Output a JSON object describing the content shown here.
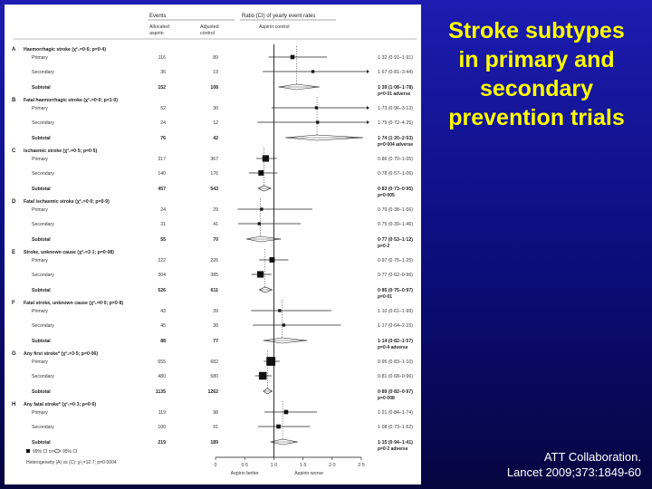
{
  "slide": {
    "title_lines": [
      "Stroke subtypes",
      "in primary and",
      "secondary",
      "prevention trials"
    ],
    "citation_lines": [
      "ATT Collaboration.",
      "Lancet 2009;373:1849-60"
    ],
    "colors": {
      "title": "#ffff00",
      "background": "#1010a0",
      "panel": "#ffffff"
    }
  },
  "chart_data": {
    "type": "forest",
    "header": {
      "events": "Events",
      "col1": [
        "Allocated",
        "aspirin"
      ],
      "col2": [
        "Adjusted",
        "control"
      ],
      "ratio": "Ratio (CI) of yearly event rates",
      "ratio_sub": "Aspirin:control"
    },
    "xlim": [
      0,
      2.5
    ],
    "xticks": [
      "0",
      "0·5",
      "1·0",
      "1·5",
      "2·0",
      "2·5"
    ],
    "xtick_values": [
      0,
      0.5,
      1.0,
      1.5,
      2.0,
      2.5
    ],
    "xlabel_left": "Aspirin better",
    "xlabel_right": "Aspirin worse",
    "reference_line": 1.0,
    "groups": [
      {
        "letter": "A",
        "label": "Haemorrhagic stroke (χ²₁=0·6; p=0·4)",
        "overall": 1.39,
        "rows": [
          {
            "label": "Primary",
            "aspirin": "116",
            "control": "89",
            "ci": "1·32 (0·91–1·91)",
            "est": 1.32,
            "lo": 0.91,
            "hi": 1.91,
            "size": 2
          },
          {
            "label": "Secondary",
            "aspirin": "36",
            "control": "19",
            "ci": "1·67 (0·81–3·44)",
            "est": 1.67,
            "lo": 0.81,
            "hi": 3.44,
            "size": 1
          }
        ],
        "subtotal": {
          "label": "Subtotal",
          "aspirin": "152",
          "control": "108",
          "ci": "1·39 (1·08–1·78)",
          "p": "p=0·01 adverse",
          "est": 1.39,
          "lo": 1.08,
          "hi": 1.78
        }
      },
      {
        "letter": "B",
        "label": "Fatal haemorrhagic stroke (χ²₁=0·0; p=1·0)",
        "overall": 1.74,
        "rows": [
          {
            "label": "Primary",
            "aspirin": "52",
            "control": "30",
            "ci": "1·73 (0·96–3·13)",
            "est": 1.73,
            "lo": 0.96,
            "hi": 3.13,
            "size": 1
          },
          {
            "label": "Secondary",
            "aspirin": "24",
            "control": "12",
            "ci": "1·75 (0·72–4·25)",
            "est": 1.75,
            "lo": 0.72,
            "hi": 4.25,
            "size": 1
          }
        ],
        "subtotal": {
          "label": "Subtotal",
          "aspirin": "76",
          "control": "42",
          "ci": "1·74 (1·20–2·53)",
          "p": "p=0·004 adverse",
          "est": 1.74,
          "lo": 1.2,
          "hi": 2.53
        }
      },
      {
        "letter": "C",
        "label": "Ischaemic stroke (χ²₁=0·5; p=0·5)",
        "overall": 0.83,
        "rows": [
          {
            "label": "Primary",
            "aspirin": "317",
            "control": "367",
            "ci": "0·86 (0·70–1·05)",
            "est": 0.86,
            "lo": 0.7,
            "hi": 1.05,
            "size": 4
          },
          {
            "label": "Secondary",
            "aspirin": "140",
            "control": "176",
            "ci": "0·78 (0·57–1·06)",
            "est": 0.78,
            "lo": 0.57,
            "hi": 1.06,
            "size": 3
          }
        ],
        "subtotal": {
          "label": "Subtotal",
          "aspirin": "457",
          "control": "543",
          "ci": "0·83 (0·73–0·95)",
          "p": "p=0·005",
          "est": 0.83,
          "lo": 0.73,
          "hi": 0.95
        }
      },
      {
        "letter": "D",
        "label": "Fatal ischaemic stroke (χ²₁=0·0; p=0·9)",
        "overall": 0.77,
        "rows": [
          {
            "label": "Primary",
            "aspirin": "24",
            "control": "29",
            "ci": "0·79 (0·38–1·66)",
            "est": 0.79,
            "lo": 0.38,
            "hi": 1.66,
            "size": 1
          },
          {
            "label": "Secondary",
            "aspirin": "31",
            "control": "41",
            "ci": "0·75 (0·39–1·46)",
            "est": 0.75,
            "lo": 0.39,
            "hi": 1.46,
            "size": 1
          }
        ],
        "subtotal": {
          "label": "Subtotal",
          "aspirin": "55",
          "control": "70",
          "ci": "0·77 (0·53–1·12)",
          "p": "p=0·2",
          "est": 0.77,
          "lo": 0.53,
          "hi": 1.12
        }
      },
      {
        "letter": "E",
        "label": "Stroke, unknown cause (χ²₁=3·1; p=0·08)",
        "overall": 0.85,
        "rows": [
          {
            "label": "Primary",
            "aspirin": "222",
            "control": "226",
            "ci": "0·97 (0·75–1·25)",
            "est": 0.97,
            "lo": 0.75,
            "hi": 1.25,
            "size": 3
          },
          {
            "label": "Secondary",
            "aspirin": "304",
            "control": "385",
            "ci": "0·77 (0·62–0·96)",
            "est": 0.77,
            "lo": 0.62,
            "hi": 0.96,
            "size": 4
          }
        ],
        "subtotal": {
          "label": "Subtotal",
          "aspirin": "526",
          "control": "611",
          "ci": "0·85 (0·75–0·97)",
          "p": "p=0·01",
          "est": 0.85,
          "lo": 0.75,
          "hi": 0.97
        }
      },
      {
        "letter": "F",
        "label": "Fatal stroke, unknown cause (χ²₁=0·0; p=0·8)",
        "overall": 1.14,
        "rows": [
          {
            "label": "Primary",
            "aspirin": "43",
            "control": "39",
            "ci": "1·10 (0·61–1·99)",
            "est": 1.1,
            "lo": 0.61,
            "hi": 1.99,
            "size": 1
          },
          {
            "label": "Secondary",
            "aspirin": "45",
            "control": "38",
            "ci": "1·17 (0·64–2·15)",
            "est": 1.17,
            "lo": 0.64,
            "hi": 2.15,
            "size": 1
          }
        ],
        "subtotal": {
          "label": "Subtotal",
          "aspirin": "88",
          "control": "77",
          "ci": "1·14 (0·82–1·57)",
          "p": "p=0·4 adverse",
          "est": 1.14,
          "lo": 0.82,
          "hi": 1.57
        }
      },
      {
        "letter": "G",
        "label": "Any first stroke* (χ²₁=3·5; p=0·06)",
        "overall": 0.89,
        "rows": [
          {
            "label": "Primary",
            "aspirin": "655",
            "control": "682",
            "ci": "0·95 (0·83–1·10)",
            "est": 0.95,
            "lo": 0.83,
            "hi": 1.1,
            "size": 6
          },
          {
            "label": "Secondary",
            "aspirin": "480",
            "control": "580",
            "ci": "0·81 (0·68–0·96)",
            "est": 0.81,
            "lo": 0.68,
            "hi": 0.96,
            "size": 5
          }
        ],
        "subtotal": {
          "label": "Subtotal",
          "aspirin": "1135",
          "control": "1262",
          "ci": "0·89 (0·82–0·97)",
          "p": "p=0·008",
          "est": 0.89,
          "lo": 0.82,
          "hi": 0.97
        }
      },
      {
        "letter": "H",
        "label": "Any fatal stroke* (χ²₁=0·3; p=0·6)",
        "overall": 1.15,
        "rows": [
          {
            "label": "Primary",
            "aspirin": "119",
            "control": "98",
            "ci": "1·21 (0·84–1·74)",
            "est": 1.21,
            "lo": 0.84,
            "hi": 1.74,
            "size": 2
          },
          {
            "label": "Secondary",
            "aspirin": "100",
            "control": "91",
            "ci": "1·08 (0·73–1·62)",
            "est": 1.08,
            "lo": 0.73,
            "hi": 1.62,
            "size": 2
          }
        ],
        "subtotal": {
          "label": "Subtotal",
          "aspirin": "219",
          "control": "189",
          "ci": "1·15 (0·94–1·41)",
          "p": "p=0·2 adverse",
          "est": 1.15,
          "lo": 0.94,
          "hi": 1.41
        }
      }
    ],
    "legend_ci": "99% CI or",
    "legend_ci2": "95% CI",
    "heterogeneity": "Heterogeneity (A) vs (C): χ²₁=12·7; p=0·0004"
  }
}
